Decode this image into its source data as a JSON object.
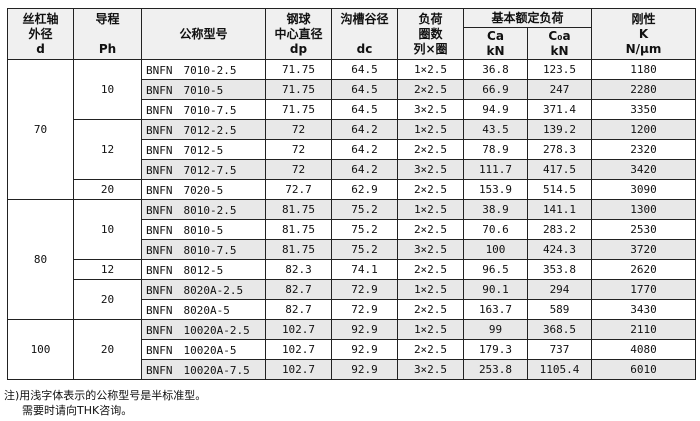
{
  "header": {
    "d_lines": [
      "丝杠轴",
      "外径",
      "d"
    ],
    "ph_lines": [
      "导程",
      "",
      "Ph"
    ],
    "model": "公称型号",
    "dp_lines": [
      "钢球",
      "中心直径",
      "dp"
    ],
    "dc_lines": [
      "沟槽谷径",
      "",
      "dc"
    ],
    "load_lines": [
      "负荷",
      "圈数",
      "列×圈"
    ],
    "rating_group": "基本额定负荷",
    "ca_lines": [
      "Ca",
      "kN"
    ],
    "c0a_lines": [
      "C₀a",
      "kN"
    ],
    "k_lines": [
      "刚性",
      "K",
      "N/μm"
    ]
  },
  "rows": [
    {
      "d": "70",
      "ph": "10",
      "model": "BNFN　7010-2.5",
      "dp": "71.75",
      "dc": "64.5",
      "load": "1×2.5",
      "ca": "36.8",
      "c0a": "123.5",
      "k": "1180",
      "shade": false
    },
    {
      "d": "",
      "ph": "",
      "model": "BNFN　7010-5",
      "dp": "71.75",
      "dc": "64.5",
      "load": "2×2.5",
      "ca": "66.9",
      "c0a": "247",
      "k": "2280",
      "shade": true
    },
    {
      "d": "",
      "ph": "",
      "model": "BNFN　7010-7.5",
      "dp": "71.75",
      "dc": "64.5",
      "load": "3×2.5",
      "ca": "94.9",
      "c0a": "371.4",
      "k": "3350",
      "shade": false
    },
    {
      "d": "",
      "ph": "12",
      "model": "BNFN　7012-2.5",
      "dp": "72",
      "dc": "64.2",
      "load": "1×2.5",
      "ca": "43.5",
      "c0a": "139.2",
      "k": "1200",
      "shade": true
    },
    {
      "d": "",
      "ph": "",
      "model": "BNFN　7012-5",
      "dp": "72",
      "dc": "64.2",
      "load": "2×2.5",
      "ca": "78.9",
      "c0a": "278.3",
      "k": "2320",
      "shade": false
    },
    {
      "d": "",
      "ph": "",
      "model": "BNFN　7012-7.5",
      "dp": "72",
      "dc": "64.2",
      "load": "3×2.5",
      "ca": "111.7",
      "c0a": "417.5",
      "k": "3420",
      "shade": true
    },
    {
      "d": "",
      "ph": "20",
      "model": "BNFN　7020-5",
      "dp": "72.7",
      "dc": "62.9",
      "load": "2×2.5",
      "ca": "153.9",
      "c0a": "514.5",
      "k": "3090",
      "shade": false
    },
    {
      "d": "80",
      "ph": "10",
      "model": "BNFN　8010-2.5",
      "dp": "81.75",
      "dc": "75.2",
      "load": "1×2.5",
      "ca": "38.9",
      "c0a": "141.1",
      "k": "1300",
      "shade": true
    },
    {
      "d": "",
      "ph": "",
      "model": "BNFN　8010-5",
      "dp": "81.75",
      "dc": "75.2",
      "load": "2×2.5",
      "ca": "70.6",
      "c0a": "283.2",
      "k": "2530",
      "shade": false
    },
    {
      "d": "",
      "ph": "",
      "model": "BNFN　8010-7.5",
      "dp": "81.75",
      "dc": "75.2",
      "load": "3×2.5",
      "ca": "100",
      "c0a": "424.3",
      "k": "3720",
      "shade": true
    },
    {
      "d": "",
      "ph": "12",
      "model": "BNFN　8012-5",
      "dp": "82.3",
      "dc": "74.1",
      "load": "2×2.5",
      "ca": "96.5",
      "c0a": "353.8",
      "k": "2620",
      "shade": false
    },
    {
      "d": "",
      "ph": "20",
      "model": "BNFN　8020A-2.5",
      "dp": "82.7",
      "dc": "72.9",
      "load": "1×2.5",
      "ca": "90.1",
      "c0a": "294",
      "k": "1770",
      "shade": true
    },
    {
      "d": "",
      "ph": "",
      "model": "BNFN　8020A-5",
      "dp": "82.7",
      "dc": "72.9",
      "load": "2×2.5",
      "ca": "163.7",
      "c0a": "589",
      "k": "3430",
      "shade": false
    },
    {
      "d": "100",
      "ph": "20",
      "model": "BNFN　10020A-2.5",
      "dp": "102.7",
      "dc": "92.9",
      "load": "1×2.5",
      "ca": "99",
      "c0a": "368.5",
      "k": "2110",
      "shade": true
    },
    {
      "d": "",
      "ph": "",
      "model": "BNFN　10020A-5",
      "dp": "102.7",
      "dc": "92.9",
      "load": "2×2.5",
      "ca": "179.3",
      "c0a": "737",
      "k": "4080",
      "shade": false
    },
    {
      "d": "",
      "ph": "",
      "model": "BNFN　10020A-7.5",
      "dp": "102.7",
      "dc": "92.9",
      "load": "3×2.5",
      "ca": "253.8",
      "c0a": "1105.4",
      "k": "6010",
      "shade": true
    }
  ],
  "groups": {
    "d": [
      {
        "text": "70",
        "span": 7
      },
      {
        "text": "80",
        "span": 6
      },
      {
        "text": "100",
        "span": 3
      }
    ],
    "ph": [
      {
        "text": "10",
        "span": 3
      },
      {
        "text": "12",
        "span": 3
      },
      {
        "text": "20",
        "span": 1
      },
      {
        "text": "10",
        "span": 3
      },
      {
        "text": "12",
        "span": 1
      },
      {
        "text": "20",
        "span": 2
      },
      {
        "text": "20",
        "span": 3
      }
    ]
  },
  "notes": {
    "line1": "注)用浅字体表示的公称型号是半标准型。",
    "line2": "需要时请向THK咨询。"
  }
}
